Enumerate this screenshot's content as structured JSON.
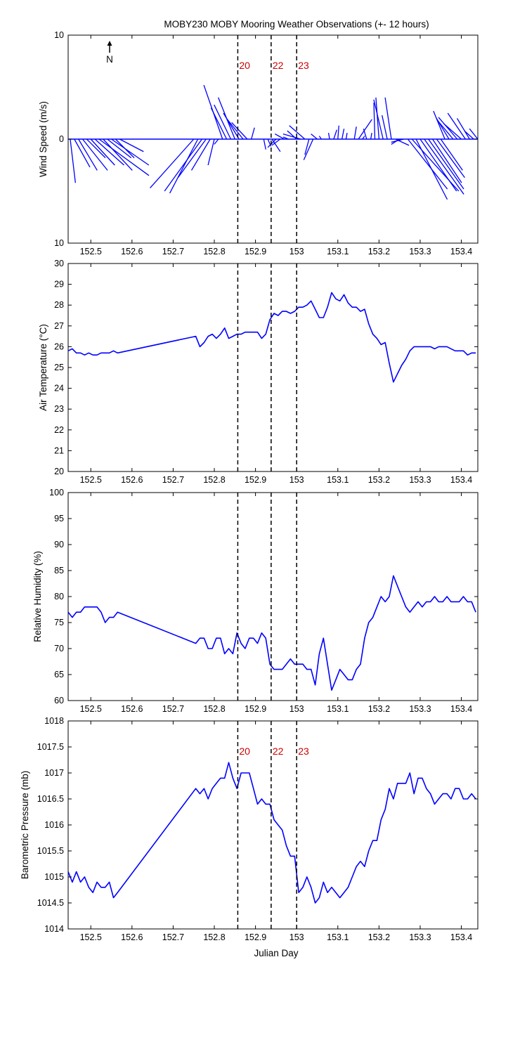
{
  "figure": {
    "title": "MOBY230 MOBY Mooring Weather Observations (+- 12 hours)",
    "xlabel": "Julian Day",
    "north_label": "N",
    "series_color": "#0000ff",
    "marker_color": "#cc0000",
    "markers": [
      {
        "label": "20",
        "x": 152.857
      },
      {
        "label": "22",
        "x": 152.938
      },
      {
        "label": "23",
        "x": 153.0
      }
    ]
  },
  "chart_data": [
    {
      "type": "line",
      "id": "wind",
      "ylabel": "Wind Speed (m/s)",
      "ylim": [
        -10,
        10
      ],
      "xlim": [
        152.445,
        153.44
      ],
      "yticks": [
        -10,
        0,
        10
      ],
      "ytick_labels": [
        "10",
        "0",
        "10"
      ],
      "xticks": [
        152.5,
        152.6,
        152.7,
        152.8,
        152.9,
        153.0,
        153.1,
        153.2,
        153.3,
        153.4
      ],
      "xtick_labels": [
        "152.5",
        "152.6",
        "152.7",
        "152.8",
        "152.9",
        "153",
        "153.1",
        "153.2",
        "153.3",
        "153.4"
      ],
      "show_markers": true,
      "marker_labels": true,
      "series": [
        {
          "style": "stick",
          "x": [
            152.45,
            152.46,
            152.47,
            152.48,
            152.49,
            152.5,
            152.51,
            152.52,
            152.53,
            152.54,
            152.55,
            152.56,
            152.57,
            152.75,
            152.76,
            152.77,
            152.78,
            152.79,
            152.8,
            152.81,
            152.82,
            152.83,
            152.84,
            152.85,
            152.86,
            152.87,
            152.88,
            152.89,
            152.92,
            152.93,
            152.94,
            152.95,
            152.96,
            152.97,
            152.98,
            153.0,
            153.01,
            153.02,
            153.03,
            153.04,
            153.05,
            153.06,
            153.08,
            153.09,
            153.1,
            153.11,
            153.12,
            153.14,
            153.15,
            153.16,
            153.17,
            153.18,
            153.19,
            153.2,
            153.21,
            153.22,
            153.23,
            153.24,
            153.25,
            153.26,
            153.27,
            153.28,
            153.29,
            153.3,
            153.31,
            153.32,
            153.33,
            153.34,
            153.35,
            153.36,
            153.37,
            153.38,
            153.39,
            153.4,
            153.41,
            153.42,
            153.43,
            153.44
          ],
          "u": [
            0.5,
            1.5,
            1.8,
            2.4,
            1.8,
            2.3,
            2.8,
            4.8,
            2.8,
            2.3,
            3.6,
            1.8,
            2.3,
            -4.2,
            -2.7,
            -3.6,
            -2.7,
            -1.8,
            -0.6,
            -0.4,
            -1.8,
            -1.5,
            -1.6,
            -1.6,
            -1.5,
            -1.6,
            -1.5,
            0.3,
            0.2,
            0.3,
            0.8,
            -0.8,
            -0.8,
            -0.9,
            -0.5,
            -0.9,
            -1.7,
            -1.5,
            -0.4,
            -0.9,
            -0.6,
            -0.2,
            -0.1,
            0.3,
            0.1,
            0.2,
            0.1,
            0.2,
            1.3,
            0.2,
            -0.3,
            0.1,
            -0.1,
            -0.3,
            -0.9,
            -0.5,
            -0.6,
            1.3,
            -0.8,
            -1.2,
            3.8,
            4.5,
            3.0,
            3.5,
            3.8,
            3.4,
            2.8,
            2.7,
            2.1,
            -1.1,
            -1.2,
            -1.5,
            -1.8,
            -1.7,
            -1.7,
            -1.2,
            -0.9,
            -0.8
          ],
          "v": [
            -4.2,
            -2.7,
            -3.0,
            -3.0,
            -1.8,
            -2.5,
            -2.5,
            -3.5,
            -3.0,
            -1.8,
            -2.5,
            -1.8,
            -1.2,
            -4.7,
            -5.2,
            -5.0,
            -3.7,
            -3.0,
            -2.5,
            -0.5,
            5.2,
            3.0,
            3.3,
            4.0,
            2.5,
            2.0,
            1.6,
            1.1,
            -1.0,
            -0.7,
            -1.2,
            -0.8,
            -0.6,
            0.5,
            0.2,
            0.8,
            0.5,
            1.3,
            -1.5,
            -2.0,
            0.5,
            0.3,
            0.6,
            0.9,
            1.3,
            1.0,
            0.6,
            1.2,
            1.9,
            0.3,
            1.0,
            0.6,
            3.5,
            4.0,
            3.8,
            2.3,
            4.0,
            -0.6,
            -0.5,
            -0.3,
            -4.8,
            -5.0,
            -5.8,
            -5.0,
            -5.3,
            -4.8,
            -4.2,
            -3.7,
            -3.0,
            2.7,
            2.0,
            1.8,
            2.1,
            1.5,
            2.5,
            2.0,
            0.8,
            1.0
          ]
        }
      ]
    },
    {
      "type": "line",
      "id": "air_temp",
      "ylabel": "Air Temperature (°C)",
      "ylim": [
        20,
        30
      ],
      "xlim": [
        152.445,
        153.44
      ],
      "yticks": [
        20,
        21,
        22,
        23,
        24,
        25,
        26,
        27,
        28,
        29,
        30
      ],
      "ytick_labels": [
        "20",
        "21",
        "22",
        "23",
        "24",
        "25",
        "26",
        "27",
        "28",
        "29",
        "30"
      ],
      "xticks": [
        152.5,
        152.6,
        152.7,
        152.8,
        152.9,
        153.0,
        153.1,
        153.2,
        153.3,
        153.4
      ],
      "xtick_labels": [
        "152.5",
        "152.6",
        "152.7",
        "152.8",
        "152.9",
        "153",
        "153.1",
        "153.2",
        "153.3",
        "153.4"
      ],
      "show_markers": true,
      "marker_labels": false,
      "series": [
        {
          "x": [
            152.445,
            152.455,
            152.465,
            152.475,
            152.485,
            152.495,
            152.505,
            152.515,
            152.525,
            152.535,
            152.545,
            152.555,
            152.565,
            152.755,
            152.765,
            152.775,
            152.785,
            152.795,
            152.805,
            152.815,
            152.825,
            152.835,
            152.845,
            152.855,
            152.865,
            152.875,
            152.885,
            152.895,
            152.905,
            152.915,
            152.925,
            152.935,
            152.945,
            152.955,
            152.965,
            152.975,
            152.985,
            152.995,
            153.005,
            153.015,
            153.025,
            153.035,
            153.045,
            153.055,
            153.065,
            153.075,
            153.085,
            153.095,
            153.105,
            153.115,
            153.125,
            153.135,
            153.145,
            153.155,
            153.165,
            153.175,
            153.185,
            153.195,
            153.205,
            153.215,
            153.225,
            153.235,
            153.245,
            153.255,
            153.265,
            153.275,
            153.285,
            153.295,
            153.305,
            153.315,
            153.325,
            153.335,
            153.345,
            153.355,
            153.365,
            153.375,
            153.385,
            153.395,
            153.405,
            153.415,
            153.425,
            153.435
          ],
          "y": [
            25.8,
            25.9,
            25.7,
            25.7,
            25.6,
            25.7,
            25.6,
            25.6,
            25.7,
            25.7,
            25.7,
            25.8,
            25.7,
            26.5,
            26.0,
            26.2,
            26.5,
            26.6,
            26.4,
            26.6,
            26.9,
            26.4,
            26.5,
            26.6,
            26.6,
            26.7,
            26.7,
            26.7,
            26.7,
            26.4,
            26.6,
            27.3,
            27.6,
            27.5,
            27.7,
            27.7,
            27.6,
            27.7,
            27.9,
            27.9,
            28.0,
            28.2,
            27.8,
            27.4,
            27.4,
            27.9,
            28.6,
            28.3,
            28.2,
            28.5,
            28.1,
            27.9,
            27.9,
            27.7,
            27.8,
            27.1,
            26.6,
            26.4,
            26.1,
            26.2,
            25.2,
            24.3,
            24.7,
            25.1,
            25.4,
            25.8,
            26.0,
            26.0,
            26.0,
            26.0,
            26.0,
            25.9,
            26.0,
            26.0,
            26.0,
            25.9,
            25.8,
            25.8,
            25.8,
            25.6,
            25.7,
            25.7
          ]
        }
      ]
    },
    {
      "type": "line",
      "id": "rel_humidity",
      "ylabel": "Relative Humidity (%)",
      "ylim": [
        60,
        100
      ],
      "xlim": [
        152.445,
        153.44
      ],
      "yticks": [
        60,
        65,
        70,
        75,
        80,
        85,
        90,
        95,
        100
      ],
      "ytick_labels": [
        "60",
        "65",
        "70",
        "75",
        "80",
        "85",
        "90",
        "95",
        "100"
      ],
      "xticks": [
        152.5,
        152.6,
        152.7,
        152.8,
        152.9,
        153.0,
        153.1,
        153.2,
        153.3,
        153.4
      ],
      "xtick_labels": [
        "152.5",
        "152.6",
        "152.7",
        "152.8",
        "152.9",
        "153",
        "153.1",
        "153.2",
        "153.3",
        "153.4"
      ],
      "show_markers": true,
      "marker_labels": false,
      "series": [
        {
          "x": [
            152.445,
            152.455,
            152.465,
            152.475,
            152.485,
            152.495,
            152.505,
            152.515,
            152.525,
            152.535,
            152.545,
            152.555,
            152.565,
            152.755,
            152.765,
            152.775,
            152.785,
            152.795,
            152.805,
            152.815,
            152.825,
            152.835,
            152.845,
            152.855,
            152.865,
            152.875,
            152.885,
            152.895,
            152.905,
            152.915,
            152.925,
            152.935,
            152.945,
            152.955,
            152.965,
            152.975,
            152.985,
            152.995,
            153.005,
            153.015,
            153.025,
            153.035,
            153.045,
            153.055,
            153.065,
            153.075,
            153.085,
            153.095,
            153.105,
            153.115,
            153.125,
            153.135,
            153.145,
            153.155,
            153.165,
            153.175,
            153.185,
            153.195,
            153.205,
            153.215,
            153.225,
            153.235,
            153.245,
            153.255,
            153.265,
            153.275,
            153.285,
            153.295,
            153.305,
            153.315,
            153.325,
            153.335,
            153.345,
            153.355,
            153.365,
            153.375,
            153.385,
            153.395,
            153.405,
            153.415,
            153.425,
            153.435
          ],
          "y": [
            77,
            76,
            77,
            77,
            78,
            78,
            78,
            78,
            77,
            75,
            76,
            76,
            77,
            71,
            72,
            72,
            70,
            70,
            72,
            72,
            69,
            70,
            69,
            73,
            71,
            70,
            72,
            72,
            71,
            73,
            72,
            67,
            66,
            66,
            66,
            67,
            68,
            67,
            67,
            67,
            66,
            66,
            63,
            69,
            72,
            67,
            62,
            64,
            66,
            65,
            64,
            64,
            66,
            67,
            72,
            75,
            76,
            78,
            80,
            79,
            80,
            84,
            82,
            80,
            78,
            77,
            78,
            79,
            78,
            79,
            79,
            80,
            79,
            79,
            80,
            79,
            79,
            79,
            80,
            79,
            79,
            77
          ]
        }
      ]
    },
    {
      "type": "line",
      "id": "baro_pressure",
      "ylabel": "Barometric Pressure (mb)",
      "ylim": [
        1014,
        1018
      ],
      "xlim": [
        152.445,
        153.44
      ],
      "yticks": [
        1014,
        1014.5,
        1015,
        1015.5,
        1016,
        1016.5,
        1017,
        1017.5,
        1018
      ],
      "ytick_labels": [
        "1014",
        "1014.5",
        "1015",
        "1015.5",
        "1016",
        "1016.5",
        "1017",
        "1017.5",
        "1018"
      ],
      "xticks": [
        152.5,
        152.6,
        152.7,
        152.8,
        152.9,
        153.0,
        153.1,
        153.2,
        153.3,
        153.4
      ],
      "xtick_labels": [
        "152.5",
        "152.6",
        "152.7",
        "152.8",
        "152.9",
        "153",
        "153.1",
        "153.2",
        "153.3",
        "153.4"
      ],
      "show_markers": true,
      "marker_labels": true,
      "series": [
        {
          "x": [
            152.445,
            152.455,
            152.465,
            152.475,
            152.485,
            152.495,
            152.505,
            152.515,
            152.525,
            152.535,
            152.545,
            152.555,
            152.565,
            152.755,
            152.765,
            152.775,
            152.785,
            152.795,
            152.805,
            152.815,
            152.825,
            152.835,
            152.845,
            152.855,
            152.865,
            152.875,
            152.885,
            152.895,
            152.905,
            152.915,
            152.925,
            152.935,
            152.945,
            152.955,
            152.965,
            152.975,
            152.985,
            152.995,
            153.005,
            153.015,
            153.025,
            153.035,
            153.045,
            153.055,
            153.065,
            153.075,
            153.085,
            153.095,
            153.105,
            153.115,
            153.125,
            153.135,
            153.145,
            153.155,
            153.165,
            153.175,
            153.185,
            153.195,
            153.205,
            153.215,
            153.225,
            153.235,
            153.245,
            153.255,
            153.265,
            153.275,
            153.285,
            153.295,
            153.305,
            153.315,
            153.325,
            153.335,
            153.345,
            153.355,
            153.365,
            153.375,
            153.385,
            153.395,
            153.405,
            153.415,
            153.425,
            153.435
          ],
          "y": [
            1015.1,
            1014.9,
            1015.1,
            1014.9,
            1015.0,
            1014.8,
            1014.7,
            1014.9,
            1014.8,
            1014.8,
            1014.9,
            1014.6,
            1014.7,
            1016.7,
            1016.6,
            1016.7,
            1016.5,
            1016.7,
            1016.8,
            1016.9,
            1016.9,
            1017.2,
            1016.9,
            1016.7,
            1017.0,
            1017.0,
            1017.0,
            1016.7,
            1016.4,
            1016.5,
            1016.4,
            1016.4,
            1016.1,
            1016.0,
            1015.9,
            1015.6,
            1015.4,
            1015.4,
            1014.7,
            1014.8,
            1015.0,
            1014.8,
            1014.5,
            1014.6,
            1014.9,
            1014.7,
            1014.8,
            1014.7,
            1014.6,
            1014.7,
            1014.8,
            1015.0,
            1015.2,
            1015.3,
            1015.2,
            1015.5,
            1015.7,
            1015.7,
            1016.1,
            1016.3,
            1016.7,
            1016.5,
            1016.8,
            1016.8,
            1016.8,
            1017.0,
            1016.6,
            1016.9,
            1016.9,
            1016.7,
            1016.6,
            1016.4,
            1016.5,
            1016.6,
            1016.6,
            1016.5,
            1016.7,
            1016.7,
            1016.5,
            1016.5,
            1016.6,
            1016.5
          ]
        }
      ]
    }
  ]
}
